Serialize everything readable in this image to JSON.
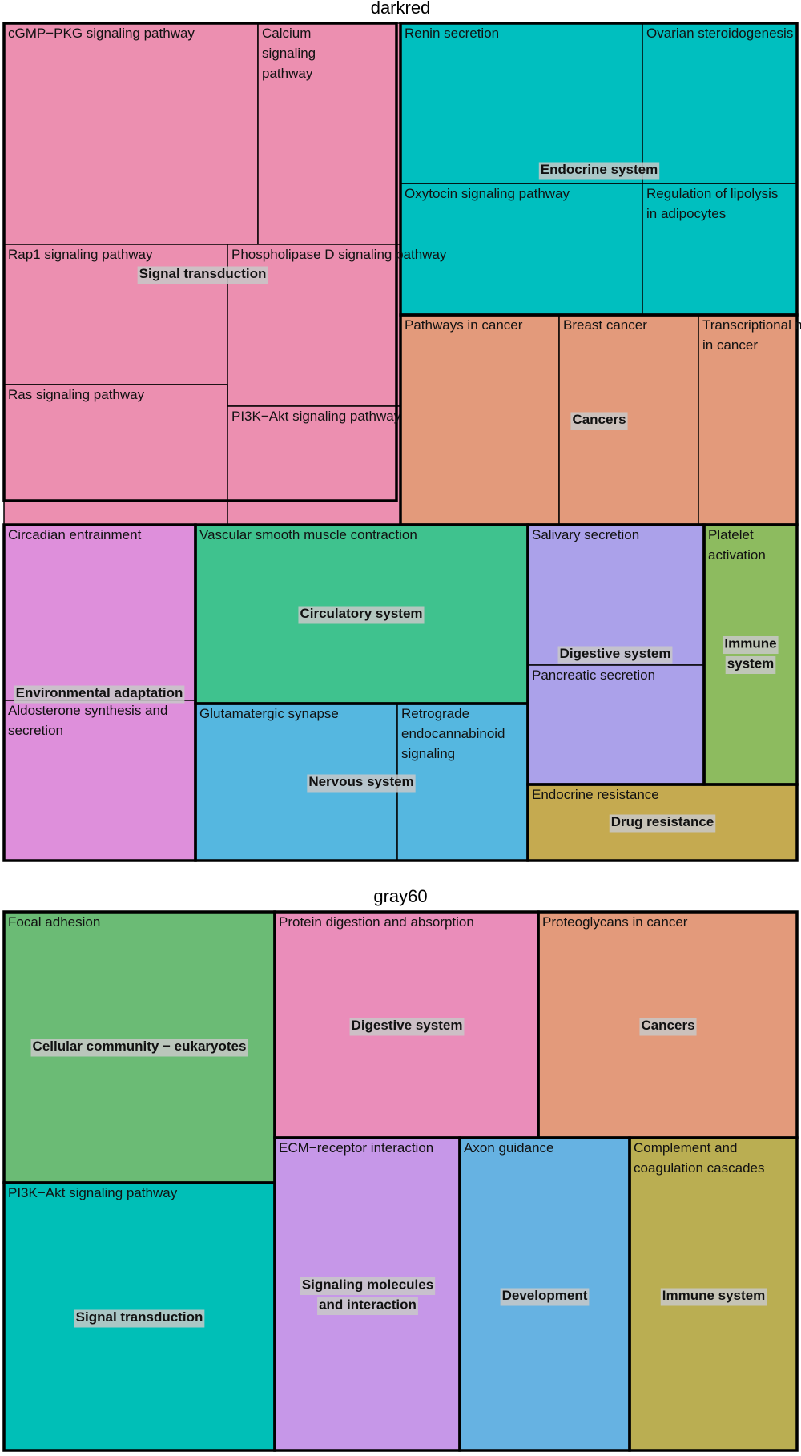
{
  "chart_data": [
    {
      "type": "treemap",
      "title": "darkred",
      "groups": [
        {
          "name": "Signal transduction",
          "color": "#EC8FB0",
          "items": [
            "cGMP−PKG signaling pathway",
            "Calcium signaling pathway",
            "Rap1 signaling pathway",
            "Phospholipase D signaling pathway",
            "Ras signaling pathway",
            "PI3K−Akt signaling pathway"
          ]
        },
        {
          "name": "Endocrine system",
          "color": "#00BFBF",
          "items": [
            "Renin secretion",
            "Ovarian steroidogenesis",
            "Oxytocin signaling pathway",
            "Regulation of lipolysis in adipocytes"
          ]
        },
        {
          "name": "Cancers",
          "color": "#E39A7B",
          "items": [
            "Pathways in cancer",
            "Breast cancer",
            "Transcriptional misregulation in cancer"
          ]
        },
        {
          "name": "Environmental adaptation",
          "color": "#DE8FDB",
          "items": [
            "Circadian entrainment",
            "Aldosterone synthesis and secretion"
          ]
        },
        {
          "name": "Circulatory system",
          "color": "#3FC28E",
          "items": [
            "Vascular smooth muscle contraction"
          ]
        },
        {
          "name": "Nervous system",
          "color": "#55B7E0",
          "items": [
            "Glutamatergic synapse",
            "Retrograde endocannabinoid signaling"
          ]
        },
        {
          "name": "Digestive system",
          "color": "#ABA1EA",
          "items": [
            "Salivary secretion",
            "Pancreatic secretion"
          ]
        },
        {
          "name": "Immune system",
          "color": "#8DBB5F",
          "items": [
            "Platelet activation"
          ]
        },
        {
          "name": "Drug resistance",
          "color": "#C5AA50",
          "items": [
            "Endocrine resistance"
          ]
        }
      ]
    },
    {
      "type": "treemap",
      "title": "gray60",
      "groups": [
        {
          "name": "Cellular community − eukaryotes",
          "color": "#6BBB75",
          "items": [
            "Focal adhesion"
          ]
        },
        {
          "name": "Digestive system",
          "color": "#EA8DBA",
          "items": [
            "Protein digestion and absorption"
          ]
        },
        {
          "name": "Cancers",
          "color": "#E39A7B",
          "items": [
            "Proteoglycans in cancer"
          ]
        },
        {
          "name": "Signal transduction",
          "color": "#00BFB7",
          "items": [
            "PI3K−Akt signaling pathway"
          ]
        },
        {
          "name": "Signaling molecules and interaction",
          "color": "#C697E8",
          "items": [
            "ECM−receptor interaction"
          ]
        },
        {
          "name": "Development",
          "color": "#66B2E2",
          "items": [
            "Axon guidance"
          ]
        },
        {
          "name": "Immune system",
          "color": "#BAAE52",
          "items": [
            "Complement and coagulation cascades"
          ]
        }
      ]
    }
  ]
}
